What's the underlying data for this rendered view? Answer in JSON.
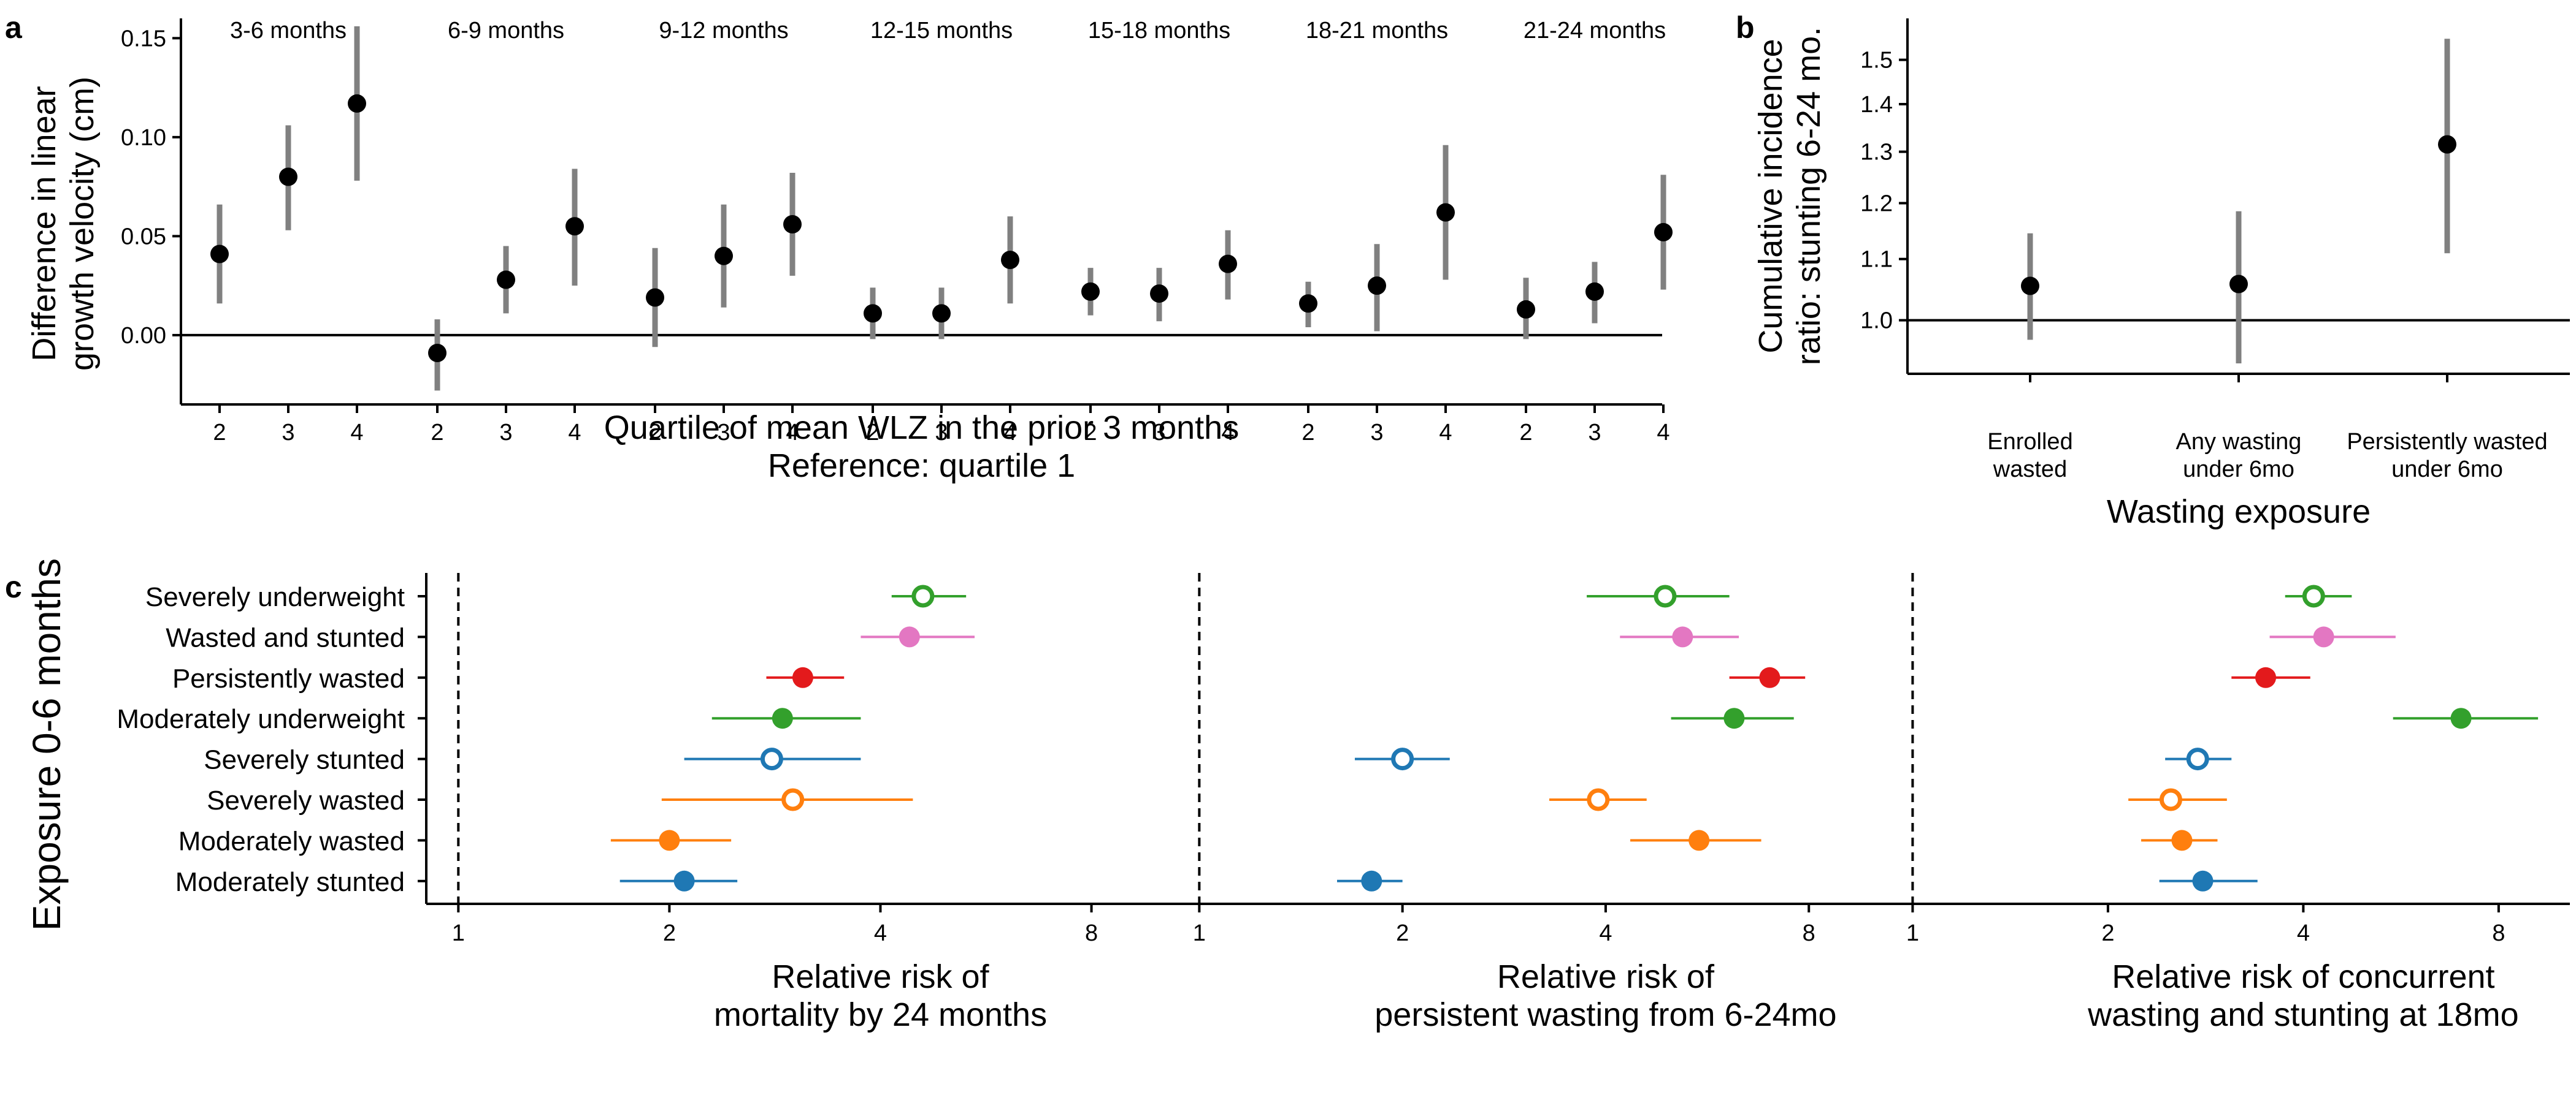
{
  "panel_labels": {
    "a": "a",
    "b": "b",
    "c": "c"
  },
  "chart_data": [
    {
      "type": "scatter",
      "panel": "a",
      "facets": [
        "3-6 months",
        "6-9 months",
        "9-12 months",
        "12-15 months",
        "15-18 months",
        "18-21 months",
        "21-24 months"
      ],
      "x_tick_labels": [
        "2",
        "3",
        "4"
      ],
      "ylabel": [
        "Difference in linear",
        "growth velocity (cm)"
      ],
      "xlabel": [
        "Quartile of mean WLZ in the prior 3 months",
        "Reference: quartile 1"
      ],
      "ylim": [
        -0.035,
        0.16
      ],
      "y_ticks": [
        0.0,
        0.05,
        0.1,
        0.15
      ],
      "y_tick_labels": [
        "0.00",
        "0.05",
        "0.10",
        "0.15"
      ],
      "reference_line": 0,
      "estimates": [
        [
          0.041,
          0.08,
          0.117
        ],
        [
          -0.009,
          0.028,
          0.055
        ],
        [
          0.019,
          0.04,
          0.056
        ],
        [
          0.011,
          0.011,
          0.038
        ],
        [
          0.022,
          0.021,
          0.036
        ],
        [
          0.016,
          0.025,
          0.062
        ],
        [
          0.013,
          0.022,
          0.052
        ]
      ],
      "ci": [
        [
          [
            0.016,
            0.066
          ],
          [
            0.053,
            0.106
          ],
          [
            0.078,
            0.156
          ]
        ],
        [
          [
            -0.028,
            0.008
          ],
          [
            0.011,
            0.045
          ],
          [
            0.025,
            0.084
          ]
        ],
        [
          [
            -0.006,
            0.044
          ],
          [
            0.014,
            0.066
          ],
          [
            0.03,
            0.082
          ]
        ],
        [
          [
            -0.002,
            0.024
          ],
          [
            -0.002,
            0.024
          ],
          [
            0.016,
            0.06
          ]
        ],
        [
          [
            0.01,
            0.034
          ],
          [
            0.007,
            0.034
          ],
          [
            0.018,
            0.053
          ]
        ],
        [
          [
            0.004,
            0.027
          ],
          [
            0.002,
            0.046
          ],
          [
            0.028,
            0.096
          ]
        ],
        [
          [
            -0.002,
            0.029
          ],
          [
            0.006,
            0.037
          ],
          [
            0.023,
            0.081
          ]
        ]
      ]
    },
    {
      "type": "scatter",
      "panel": "b",
      "categories": [
        [
          "Enrolled",
          "wasted"
        ],
        [
          "Any wasting",
          "under 6mo"
        ],
        [
          "Persistently wasted",
          "under 6mo"
        ]
      ],
      "values": [
        1.055,
        1.058,
        1.315
      ],
      "ci": [
        [
          0.97,
          1.145
        ],
        [
          0.935,
          1.185
        ],
        [
          1.11,
          1.55
        ]
      ],
      "ylabel": [
        "Cumulative incidence",
        "ratio: stunting 6-24 mo."
      ],
      "xlabel": "Wasting exposure",
      "ylim": [
        0.92,
        1.6
      ],
      "y_scale": "log",
      "y_ticks": [
        1.0,
        1.1,
        1.2,
        1.3,
        1.4,
        1.5
      ],
      "y_tick_labels": [
        "1.0",
        "1.1",
        "1.2",
        "1.3",
        "1.4",
        "1.5"
      ],
      "reference_line": 1.0
    },
    {
      "type": "scatter",
      "panel": "c",
      "ylabel": "Exposure 0-6 months",
      "categories": [
        "Severely underweight",
        "Wasted and stunted",
        "Persistently wasted",
        "Moderately underweight",
        "Severely stunted",
        "Severely wasted",
        "Moderately wasted",
        "Moderately stunted"
      ],
      "colors": [
        "#33a02c",
        "#e377c2",
        "#e31a1c",
        "#33a02c",
        "#1f78b4",
        "#ff7f0e",
        "#ff7f0e",
        "#1f78b4"
      ],
      "hollow": [
        true,
        false,
        false,
        false,
        true,
        true,
        false,
        false
      ],
      "x_scale": "log2",
      "xlim": [
        0.9,
        10.3
      ],
      "x_ticks": [
        1,
        2,
        4,
        8
      ],
      "x_tick_labels": [
        "1",
        "2",
        "4",
        "8"
      ],
      "reference_line": 1,
      "facets": [
        {
          "xlabel": [
            "Relative risk of",
            "mortality by 24 months"
          ],
          "values": [
            4.6,
            4.4,
            3.1,
            2.9,
            2.8,
            3.0,
            2.0,
            2.1
          ],
          "ci": [
            [
              4.15,
              5.3
            ],
            [
              3.75,
              5.45
            ],
            [
              2.75,
              3.55
            ],
            [
              2.3,
              3.75
            ],
            [
              2.1,
              3.75
            ],
            [
              1.95,
              4.45
            ],
            [
              1.65,
              2.45
            ],
            [
              1.7,
              2.5
            ]
          ]
        },
        {
          "xlabel": [
            "Relative risk of",
            "persistent wasting from 6-24mo"
          ],
          "values": [
            4.9,
            5.2,
            7.0,
            6.2,
            2.0,
            3.9,
            5.5,
            1.8
          ],
          "ci": [
            [
              3.75,
              6.1
            ],
            [
              4.2,
              6.3
            ],
            [
              6.1,
              7.9
            ],
            [
              5.0,
              7.6
            ],
            [
              1.7,
              2.35
            ],
            [
              3.3,
              4.6
            ],
            [
              4.35,
              6.8
            ],
            [
              1.6,
              2.0
            ]
          ]
        },
        {
          "xlabel": [
            "Relative risk of concurrent",
            "wasting and stunting at 18mo"
          ],
          "values": [
            4.15,
            4.3,
            3.5,
            7.0,
            2.75,
            2.5,
            2.6,
            2.8
          ],
          "ci": [
            [
              3.75,
              4.75
            ],
            [
              3.55,
              5.55
            ],
            [
              3.1,
              4.1
            ],
            [
              5.5,
              9.2
            ],
            [
              2.45,
              3.1
            ],
            [
              2.15,
              3.05
            ],
            [
              2.25,
              2.95
            ],
            [
              2.4,
              3.4
            ]
          ]
        }
      ]
    }
  ]
}
